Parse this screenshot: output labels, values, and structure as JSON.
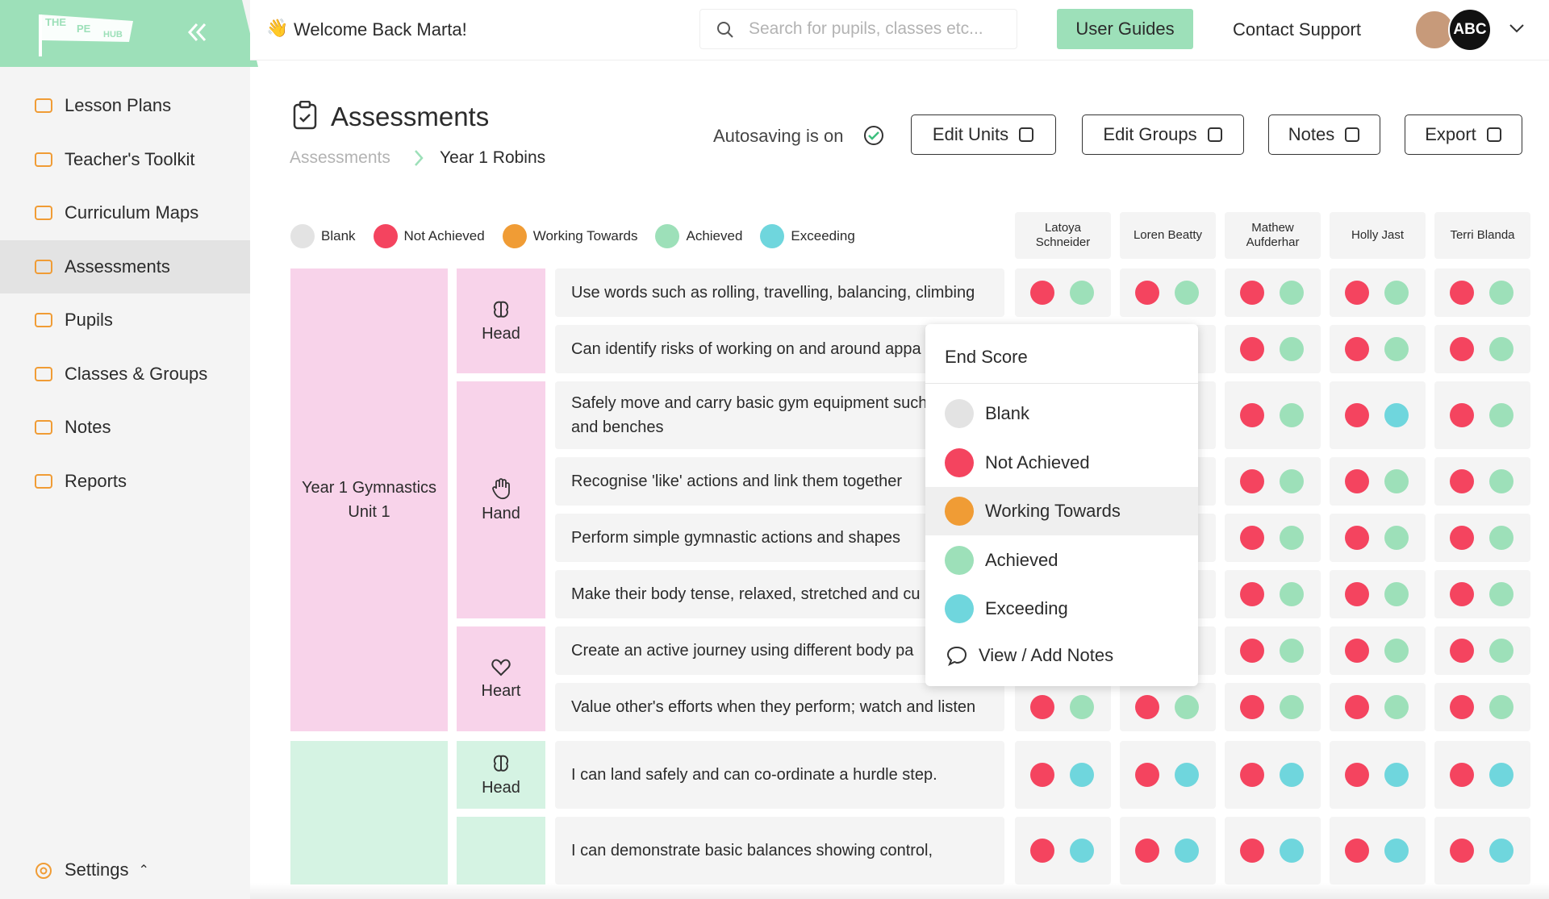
{
  "logo": {
    "top": "THE",
    "middle": "PE",
    "bottom": "HUB"
  },
  "sidebar": {
    "nav": [
      {
        "label": "Lesson Plans"
      },
      {
        "label": "Teacher's Toolkit"
      },
      {
        "label": "Curriculum Maps"
      },
      {
        "label": "Assessments",
        "active": true
      },
      {
        "label": "Pupils"
      },
      {
        "label": "Classes & Groups"
      },
      {
        "label": "Notes"
      },
      {
        "label": "Reports"
      }
    ],
    "settings": "Settings"
  },
  "header": {
    "welcome": "Welcome Back Marta!",
    "search_placeholder": "Search for pupils, classes etc...",
    "user_guides": "User Guides",
    "contact_support": "Contact Support",
    "school_badge": "ABC"
  },
  "page": {
    "title": "Assessments",
    "breadcrumb": [
      "Assessments",
      "Year 1 Robins"
    ],
    "autosave": "Autosaving is on",
    "buttons": [
      "Edit Units",
      "Edit Groups",
      "Notes",
      "Export"
    ]
  },
  "legend": [
    {
      "name": "Blank",
      "color": "#e3e3e3"
    },
    {
      "name": "Not Achieved",
      "color": "#f4445f"
    },
    {
      "name": "Working Towards",
      "color": "#f09c35"
    },
    {
      "name": "Achieved",
      "color": "#9de0b9"
    },
    {
      "name": "Exceeding",
      "color": "#6fd6dd"
    }
  ],
  "pupils": [
    "Latoya Schneider",
    "Loren Beatty",
    "Mathew Aufderhar",
    "Holly Jast",
    "Terri Blanda"
  ],
  "units": [
    {
      "label": "Year 1 Gymnastics Unit 1",
      "color": "#f8d3ea",
      "areas": [
        {
          "label": "Head",
          "icon": "brain",
          "rows": [
            {
              "text": "Use words such as rolling, travelling, balancing, climbing",
              "scores": [
                [
                  "Not Achieved",
                  "Achieved"
                ],
                [
                  "Not Achieved",
                  "Achieved"
                ],
                [
                  "Not Achieved",
                  "Achieved"
                ],
                [
                  "Not Achieved",
                  "Achieved"
                ],
                [
                  "Not Achieved",
                  "Achieved"
                ]
              ]
            },
            {
              "text": "Can identify risks of working on and around appa",
              "scores": [
                null,
                null,
                [
                  "Not Achieved",
                  "Achieved"
                ],
                [
                  "Not Achieved",
                  "Achieved"
                ],
                [
                  "Not Achieved",
                  "Achieved"
                ]
              ]
            }
          ]
        },
        {
          "label": "Hand",
          "icon": "hand",
          "rows": [
            {
              "text": "Safely move and carry basic gym equipment such mats and benches",
              "scores": [
                null,
                null,
                [
                  "Not Achieved",
                  "Achieved"
                ],
                [
                  "Not Achieved",
                  "Exceeding"
                ],
                [
                  "Not Achieved",
                  "Achieved"
                ]
              ]
            },
            {
              "text": "Recognise 'like' actions and link them together",
              "scores": [
                null,
                null,
                [
                  "Not Achieved",
                  "Achieved"
                ],
                [
                  "Not Achieved",
                  "Achieved"
                ],
                [
                  "Not Achieved",
                  "Achieved"
                ]
              ]
            },
            {
              "text": "Perform simple gymnastic actions and shapes",
              "scores": [
                null,
                null,
                [
                  "Not Achieved",
                  "Achieved"
                ],
                [
                  "Not Achieved",
                  "Achieved"
                ],
                [
                  "Not Achieved",
                  "Achieved"
                ]
              ]
            },
            {
              "text": "Make their body tense, relaxed, stretched and cu",
              "scores": [
                null,
                null,
                [
                  "Not Achieved",
                  "Achieved"
                ],
                [
                  "Not Achieved",
                  "Achieved"
                ],
                [
                  "Not Achieved",
                  "Achieved"
                ]
              ]
            }
          ]
        },
        {
          "label": "Heart",
          "icon": "heart",
          "rows": [
            {
              "text": "Create an active journey using different body pa",
              "scores": [
                null,
                null,
                [
                  "Not Achieved",
                  "Achieved"
                ],
                [
                  "Not Achieved",
                  "Achieved"
                ],
                [
                  "Not Achieved",
                  "Achieved"
                ]
              ]
            },
            {
              "text": "Value other's efforts when they perform; watch and listen",
              "scores": [
                [
                  "Not Achieved",
                  "Achieved"
                ],
                [
                  "Not Achieved",
                  "Achieved"
                ],
                [
                  "Not Achieved",
                  "Achieved"
                ],
                [
                  "Not Achieved",
                  "Achieved"
                ],
                [
                  "Not Achieved",
                  "Achieved"
                ]
              ]
            }
          ]
        }
      ]
    },
    {
      "label": null,
      "color": "#d5f3e3",
      "areas": [
        {
          "label": "Head",
          "icon": "brain",
          "rows": [
            {
              "text": "I can land safely and can co-ordinate a hurdle step.",
              "scores": [
                [
                  "Not Achieved",
                  "Exceeding"
                ],
                [
                  "Not Achieved",
                  "Exceeding"
                ],
                [
                  "Not Achieved",
                  "Exceeding"
                ],
                [
                  "Not Achieved",
                  "Exceeding"
                ],
                [
                  "Not Achieved",
                  "Exceeding"
                ]
              ]
            }
          ]
        },
        {
          "label": null,
          "icon": null,
          "rows": [
            {
              "text": "I can demonstrate basic balances showing control,",
              "scores": [
                [
                  "Not Achieved",
                  "Exceeding"
                ],
                [
                  "Not Achieved",
                  "Exceeding"
                ],
                [
                  "Not Achieved",
                  "Exceeding"
                ],
                [
                  "Not Achieved",
                  "Exceeding"
                ],
                [
                  "Not Achieved",
                  "Exceeding"
                ]
              ]
            }
          ]
        }
      ]
    }
  ],
  "dropdown": {
    "title": "End Score",
    "hovered": "Working Towards",
    "notes": "View / Add Notes"
  }
}
